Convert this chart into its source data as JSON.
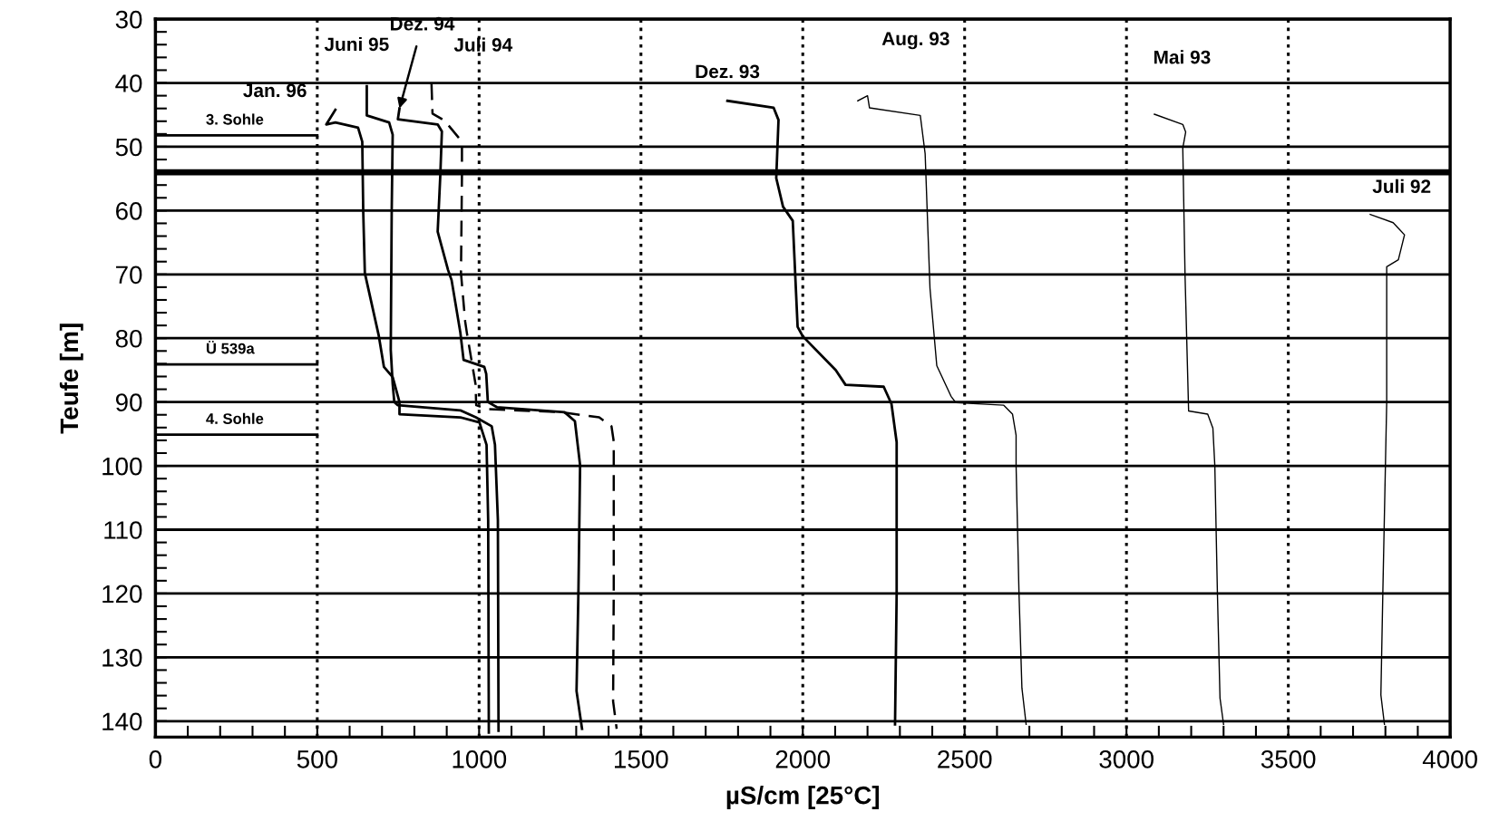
{
  "chart_data": {
    "type": "line",
    "xlabel": "µS/cm [25°C]",
    "ylabel": "Teufe [m]",
    "xlim": [
      0,
      4000
    ],
    "ylim": [
      142.5,
      30
    ],
    "xticks": [
      0,
      {
        "value": 100,
        "label": null
      },
      {
        "value": 200,
        "label": null
      },
      {
        "value": 300,
        "label": null
      },
      {
        "value": 400,
        "label": null
      },
      500,
      {
        "value": 600,
        "label": null
      },
      {
        "value": 700,
        "label": null
      },
      {
        "value": 800,
        "label": null
      },
      {
        "value": 900,
        "label": null
      },
      1000,
      {
        "value": 1100,
        "label": null
      },
      {
        "value": 1200,
        "label": null
      },
      {
        "value": 1300,
        "label": null
      },
      {
        "value": 1400,
        "label": null
      },
      1500,
      {
        "value": 1600,
        "label": null
      },
      {
        "value": 1700,
        "label": null
      },
      {
        "value": 1800,
        "label": null
      },
      {
        "value": 1900,
        "label": null
      },
      2000,
      {
        "value": 2100,
        "label": null
      },
      {
        "value": 2200,
        "label": null
      },
      {
        "value": 2300,
        "label": null
      },
      {
        "value": 2400,
        "label": null
      },
      2500,
      {
        "value": 2600,
        "label": null
      },
      {
        "value": 2700,
        "label": null
      },
      {
        "value": 2800,
        "label": null
      },
      {
        "value": 2900,
        "label": null
      },
      3000,
      {
        "value": 3100,
        "label": null
      },
      {
        "value": 3200,
        "label": null
      },
      {
        "value": 3300,
        "label": null
      },
      {
        "value": 3400,
        "label": null
      },
      3500,
      {
        "value": 3600,
        "label": null
      },
      {
        "value": 3700,
        "label": null
      },
      {
        "value": 3800,
        "label": null
      },
      {
        "value": 3900,
        "label": null
      },
      4000
    ],
    "yticks": [
      30,
      {
        "value": 32,
        "label": null
      },
      {
        "value": 34,
        "label": null
      },
      {
        "value": 36,
        "label": null
      },
      {
        "value": 38,
        "label": null
      },
      40,
      {
        "value": 42,
        "label": null
      },
      {
        "value": 44,
        "label": null
      },
      {
        "value": 46,
        "label": null
      },
      {
        "value": 48,
        "label": null
      },
      50,
      {
        "value": 52,
        "label": null
      },
      {
        "value": 54,
        "label": null
      },
      {
        "value": 56,
        "label": null
      },
      {
        "value": 58,
        "label": null
      },
      60,
      {
        "value": 62,
        "label": null
      },
      {
        "value": 64,
        "label": null
      },
      {
        "value": 66,
        "label": null
      },
      {
        "value": 68,
        "label": null
      },
      70,
      {
        "value": 72,
        "label": null
      },
      {
        "value": 74,
        "label": null
      },
      {
        "value": 76,
        "label": null
      },
      {
        "value": 78,
        "label": null
      },
      80,
      {
        "value": 82,
        "label": null
      },
      {
        "value": 84,
        "label": null
      },
      {
        "value": 86,
        "label": null
      },
      {
        "value": 88,
        "label": null
      },
      90,
      {
        "value": 92,
        "label": null
      },
      {
        "value": 94,
        "label": null
      },
      {
        "value": 96,
        "label": null
      },
      {
        "value": 98,
        "label": null
      },
      100,
      {
        "value": 102,
        "label": null
      },
      {
        "value": 104,
        "label": null
      },
      {
        "value": 106,
        "label": null
      },
      {
        "value": 108,
        "label": null
      },
      110,
      {
        "value": 112,
        "label": null
      },
      {
        "value": 114,
        "label": null
      },
      {
        "value": 116,
        "label": null
      },
      {
        "value": 118,
        "label": null
      },
      120,
      {
        "value": 122,
        "label": null
      },
      {
        "value": 124,
        "label": null
      },
      {
        "value": 126,
        "label": null
      },
      {
        "value": 128,
        "label": null
      },
      130,
      {
        "value": 132,
        "label": null
      },
      {
        "value": 134,
        "label": null
      },
      {
        "value": 136,
        "label": null
      },
      {
        "value": 138,
        "label": null
      },
      140
    ],
    "grid": "y",
    "ref_lines": [
      {
        "axis": "y",
        "value": 54,
        "color": "#000000"
      },
      {
        "axis": "x",
        "value": 500,
        "line_style": "dotted",
        "color": "#000000"
      },
      {
        "axis": "x",
        "value": 1000,
        "line_style": "dotted",
        "color": "#000000"
      },
      {
        "axis": "x",
        "value": 1500,
        "line_style": "dotted",
        "color": "#000000"
      },
      {
        "axis": "x",
        "value": 2000,
        "line_style": "dotted",
        "color": "#000000"
      },
      {
        "axis": "x",
        "value": 2500,
        "line_style": "dotted",
        "color": "#000000"
      },
      {
        "axis": "x",
        "value": 3000,
        "line_style": "dotted",
        "color": "#000000"
      },
      {
        "axis": "x",
        "value": 3500,
        "line_style": "dotted",
        "color": "#000000"
      }
    ],
    "series": [
      {
        "name": "Jan. 96",
        "color": "#000000",
        "x": [
          556,
          528,
          556,
          626,
          639,
          642,
          647,
          690,
          706,
          733,
          754,
          754,
          942,
          1001,
          1023,
          1028,
          1030
        ],
        "values": [
          44.2,
          46.5,
          46.2,
          47,
          49.2,
          60.1,
          69.8,
          79.6,
          84.5,
          86.1,
          90,
          91.9,
          92.4,
          93.2,
          96.7,
          108.5,
          141.8
        ]
      },
      {
        "name": "Juni 95",
        "color": "#000000",
        "x": [
          653,
          653,
          722,
          733,
          730,
          727,
          733,
          738,
          749,
          942,
          990,
          1039,
          1049,
          1058,
          1060
        ],
        "values": [
          40.5,
          45.1,
          46.2,
          48.1,
          60,
          81.8,
          87.2,
          90,
          90.5,
          91.3,
          92.4,
          93.8,
          96.7,
          108.5,
          141.5
        ]
      },
      {
        "name": "Dez. 94",
        "color": "#000000",
        "x": [
          754,
          749,
          872,
          885,
          880,
          872,
          904,
          915,
          942,
          952,
          1016,
          1022,
          1027,
          1055,
          1264,
          1296,
          1312,
          1307,
          1301,
          1318
        ],
        "values": [
          44,
          45.7,
          46.5,
          47.6,
          54.6,
          63.3,
          69.3,
          70.9,
          79.1,
          83.4,
          84.5,
          85.6,
          90,
          90.8,
          91.6,
          93,
          99.9,
          119.2,
          135.3,
          141.2
        ]
      },
      {
        "name": "Juli 94",
        "color": "#000000",
        "line_style": "dashed",
        "x": [
          853,
          856,
          893,
          947,
          947,
          944,
          957,
          962,
          989,
          991,
          1028,
          1253,
          1371,
          1409,
          1416,
          1416,
          1414,
          1425
        ],
        "values": [
          40.2,
          44.8,
          45.9,
          49.2,
          54.6,
          69.8,
          77.4,
          79.1,
          87.2,
          90.5,
          91.1,
          91.6,
          92.4,
          93.8,
          96.2,
          119.2,
          136.9,
          141.2
        ]
      },
      {
        "name": "Dez. 93",
        "color": "#000000",
        "x": [
          1767,
          1910,
          1925,
          1918,
          1939,
          1969,
          1984,
          2000,
          2102,
          2132,
          2250,
          2274,
          2290,
          2290,
          2285
        ],
        "values": [
          42.8,
          43.9,
          45.8,
          54.9,
          59.4,
          61.6,
          78.2,
          79.7,
          85,
          87.3,
          87.6,
          90.3,
          96.3,
          120,
          140.5
        ]
      },
      {
        "name": "Aug. 93",
        "color": "#000000",
        "x": [
          2170,
          2200,
          2206,
          2363,
          2378,
          2393,
          2414,
          2458,
          2473,
          2621,
          2648,
          2659,
          2659,
          2668,
          2677,
          2690
        ],
        "values": [
          42.8,
          42,
          43.9,
          45.1,
          51.1,
          72.2,
          84.3,
          89.1,
          90.1,
          90.5,
          91.9,
          95.2,
          100,
          120,
          134.8,
          140.5
        ]
      },
      {
        "name": "Mai 93",
        "color": "#000000",
        "x": [
          3086,
          3174,
          3183,
          3174,
          3181,
          3192,
          3251,
          3267,
          3273,
          3281,
          3289,
          3300
        ],
        "values": [
          44.9,
          46.5,
          47.7,
          50.2,
          70.2,
          91.4,
          91.9,
          94.1,
          100,
          120,
          136.4,
          140.5
        ]
      },
      {
        "name": "Juli 92",
        "color": "#000000",
        "x": [
          3753,
          3824,
          3859,
          3840,
          3804,
          3804,
          3800,
          3792,
          3786,
          3797
        ],
        "values": [
          60.6,
          61.9,
          63.8,
          67.7,
          68.8,
          90,
          100,
          120,
          135.9,
          140.5
        ]
      },
      {
        "name": "3. Sohle",
        "color": "#000000",
        "x": [
          0,
          500
        ],
        "values": [
          48.2,
          48.2
        ]
      },
      {
        "name": "Ü 539a",
        "color": "#000000",
        "x": [
          0,
          500
        ],
        "values": [
          84.1,
          84.1
        ]
      },
      {
        "name": "4. Sohle",
        "color": "#000000",
        "x": [
          0,
          500
        ],
        "values": [
          95.1,
          95.1
        ]
      }
    ]
  }
}
